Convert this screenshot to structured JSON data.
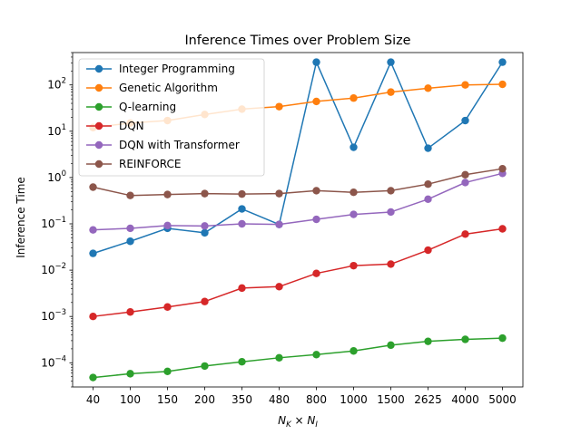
{
  "chart_data": {
    "type": "line",
    "title": "Inference Times over Problem Size",
    "xlabel": "N_K × N_I",
    "xlabel_parts": {
      "n1": "N",
      "s1": "K",
      "times": " × ",
      "n2": "N",
      "s2": "I"
    },
    "ylabel": "Inference Time",
    "yscale": "log",
    "ylim": [
      3e-05,
      500
    ],
    "categories": [
      "40",
      "100",
      "150",
      "200",
      "350",
      "480",
      "800",
      "1000",
      "1500",
      "2625",
      "4000",
      "5000"
    ],
    "y_ticks": [
      {
        "base": "10",
        "exp": "−4",
        "value": 0.0001
      },
      {
        "base": "10",
        "exp": "−3",
        "value": 0.001
      },
      {
        "base": "10",
        "exp": "−2",
        "value": 0.01
      },
      {
        "base": "10",
        "exp": "−1",
        "value": 0.1
      },
      {
        "base": "10",
        "exp": "0",
        "value": 1
      },
      {
        "base": "10",
        "exp": "1",
        "value": 10
      },
      {
        "base": "10",
        "exp": "2",
        "value": 100
      }
    ],
    "grid": false,
    "legend_position": "top-left",
    "series": [
      {
        "name": "Integer Programming",
        "color": "#1f77b4",
        "values": [
          0.023,
          0.042,
          0.08,
          0.064,
          0.21,
          0.097,
          310,
          4.5,
          310,
          4.3,
          17,
          310
        ]
      },
      {
        "name": "Genetic Algorithm",
        "color": "#ff7f0e",
        "values": [
          12,
          15,
          17,
          23,
          30,
          34,
          44,
          52,
          70,
          85,
          100,
          103
        ]
      },
      {
        "name": "Q-learning",
        "color": "#2ca02c",
        "values": [
          4.8e-05,
          5.8e-05,
          6.5e-05,
          8.5e-05,
          0.000105,
          0.000128,
          0.00015,
          0.00018,
          0.00024,
          0.00029,
          0.00032,
          0.00034
        ]
      },
      {
        "name": "DQN",
        "color": "#d62728",
        "values": [
          0.001,
          0.00125,
          0.0016,
          0.0021,
          0.0041,
          0.0044,
          0.0085,
          0.0125,
          0.0135,
          0.027,
          0.06,
          0.078
        ]
      },
      {
        "name": "DQN with Transformer",
        "color": "#9467bd",
        "values": [
          0.074,
          0.08,
          0.092,
          0.09,
          0.1,
          0.097,
          0.125,
          0.16,
          0.18,
          0.34,
          0.78,
          1.23
        ]
      },
      {
        "name": "REINFORCE",
        "color": "#8c564b",
        "values": [
          0.62,
          0.41,
          0.43,
          0.45,
          0.44,
          0.45,
          0.52,
          0.48,
          0.52,
          0.72,
          1.15,
          1.55
        ]
      }
    ]
  }
}
